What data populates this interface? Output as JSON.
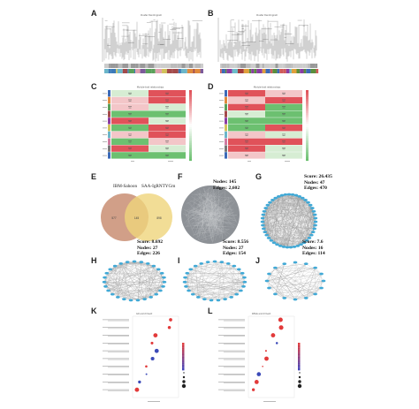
{
  "panels": {
    "A": {
      "label": "A",
      "title": "Cluster Dendrogram"
    },
    "B": {
      "label": "B",
      "title": "Cluster Dendrogram"
    },
    "C": {
      "label": "C",
      "title": "Module-trait relationships"
    },
    "D": {
      "label": "D",
      "title": "Module-trait relationships"
    },
    "E": {
      "label": "E",
      "set1": "IBM-Sahoon",
      "set2": "SAA-IgRNTYGm",
      "left_only": "577",
      "overlap": "145",
      "right_only": "898"
    },
    "F": {
      "label": "F",
      "nodes": "Nodes: 145",
      "edges": "Edges: 2,602"
    },
    "G": {
      "label": "G",
      "score": "Score: 26.435",
      "nodes": "Nodes: 47",
      "edges": "Edges: 470"
    },
    "H": {
      "label": "H",
      "score": "Score: 8.692",
      "nodes": "Nodes: 27",
      "edges": "Edges: 226"
    },
    "I": {
      "label": "I",
      "score": "Score: 8.556",
      "nodes": "Nodes: 27",
      "edges": "Edges: 154"
    },
    "J": {
      "label": "J",
      "score": "Score: 7.6",
      "nodes": "Nodes: 16",
      "edges": "Edges: 114"
    },
    "K": {
      "label": "K",
      "title": "GO enrichment"
    },
    "L": {
      "label": "L",
      "title": "KEGG enrichment"
    }
  },
  "colors": {
    "venn_left": "#c98e73",
    "venn_right": "#efd47c",
    "node": "#41a9d6",
    "heat_red": "#e0525a",
    "heat_green": "#6cc070",
    "dot_red": "#e23a3a"
  }
}
